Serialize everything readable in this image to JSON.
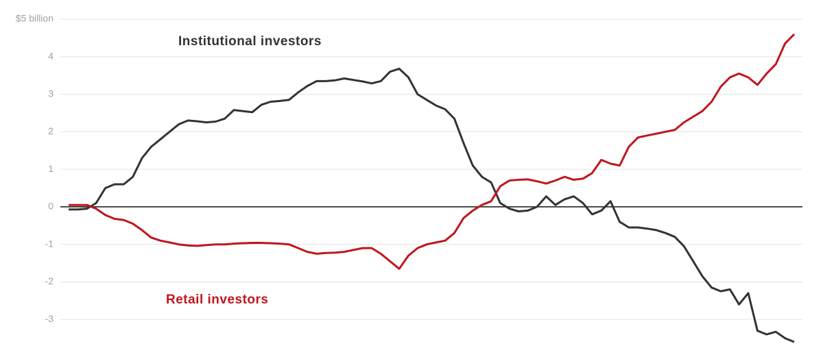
{
  "chart_data": {
    "type": "line",
    "categories": [
      null,
      null,
      null,
      null,
      null,
      null,
      null,
      null,
      null,
      null,
      null,
      null,
      null,
      null,
      null,
      null,
      null,
      null,
      null,
      null,
      null,
      null,
      null,
      null,
      null,
      null,
      null,
      null,
      null,
      null,
      null,
      null,
      null,
      null,
      null,
      null,
      null,
      null,
      null,
      null,
      null,
      null,
      null,
      null,
      null,
      null,
      null,
      null,
      null,
      null,
      null,
      null,
      null,
      null,
      null,
      null,
      null,
      null,
      null,
      null,
      null,
      null,
      null,
      null,
      null,
      null,
      null,
      null,
      null,
      null,
      null,
      null,
      null,
      null,
      null,
      null,
      null,
      null,
      null,
      null
    ],
    "series": [
      {
        "name": "Institutional investors",
        "color": "#333333",
        "values": [
          -0.07,
          -0.07,
          -0.05,
          0.1,
          0.5,
          0.6,
          0.6,
          0.8,
          1.3,
          1.6,
          1.8,
          2.0,
          2.2,
          2.3,
          2.28,
          2.25,
          2.27,
          2.35,
          2.58,
          2.55,
          2.52,
          2.72,
          2.8,
          2.82,
          2.85,
          3.05,
          3.22,
          3.35,
          3.35,
          3.37,
          3.42,
          3.38,
          3.34,
          3.29,
          3.35,
          3.6,
          3.68,
          3.45,
          3.0,
          2.85,
          2.7,
          2.6,
          2.35,
          1.7,
          1.1,
          0.8,
          0.65,
          0.1,
          -0.05,
          -0.12,
          -0.1,
          0.0,
          0.28,
          0.05,
          0.2,
          0.28,
          0.1,
          -0.2,
          -0.1,
          0.15,
          -0.4,
          -0.55,
          -0.55,
          -0.58,
          -0.62,
          -0.7,
          -0.8,
          -1.05,
          -1.45,
          -1.85,
          -2.15,
          -2.25,
          -2.2,
          -2.6,
          -2.3,
          -3.3,
          -3.4,
          -3.33,
          -3.5,
          -3.6
        ]
      },
      {
        "name": "Retail investors",
        "color": "#c0161c",
        "values": [
          0.05,
          0.05,
          0.05,
          -0.05,
          -0.22,
          -0.32,
          -0.35,
          -0.45,
          -0.62,
          -0.82,
          -0.9,
          -0.95,
          -1.0,
          -1.03,
          -1.04,
          -1.02,
          -1.0,
          -1.0,
          -0.98,
          -0.97,
          -0.96,
          -0.96,
          -0.97,
          -0.98,
          -1.0,
          -1.1,
          -1.2,
          -1.25,
          -1.23,
          -1.22,
          -1.2,
          -1.15,
          -1.1,
          -1.1,
          -1.25,
          -1.45,
          -1.65,
          -1.3,
          -1.1,
          -1.0,
          -0.95,
          -0.9,
          -0.7,
          -0.3,
          -0.1,
          0.05,
          0.15,
          0.55,
          0.7,
          0.72,
          0.73,
          0.68,
          0.62,
          0.7,
          0.8,
          0.72,
          0.75,
          0.9,
          1.25,
          1.15,
          1.1,
          1.6,
          1.85,
          1.9,
          1.95,
          2.0,
          2.05,
          2.25,
          2.4,
          2.55,
          2.8,
          3.2,
          3.45,
          3.55,
          3.45,
          3.25,
          3.55,
          3.8,
          4.35,
          4.6
        ]
      }
    ],
    "ylim": [
      -4,
      5
    ],
    "yticks": [
      {
        "value": 5,
        "label": "$5 billion"
      },
      4,
      3,
      2,
      1,
      0,
      -1,
      -2,
      -3
    ],
    "grid": true
  }
}
